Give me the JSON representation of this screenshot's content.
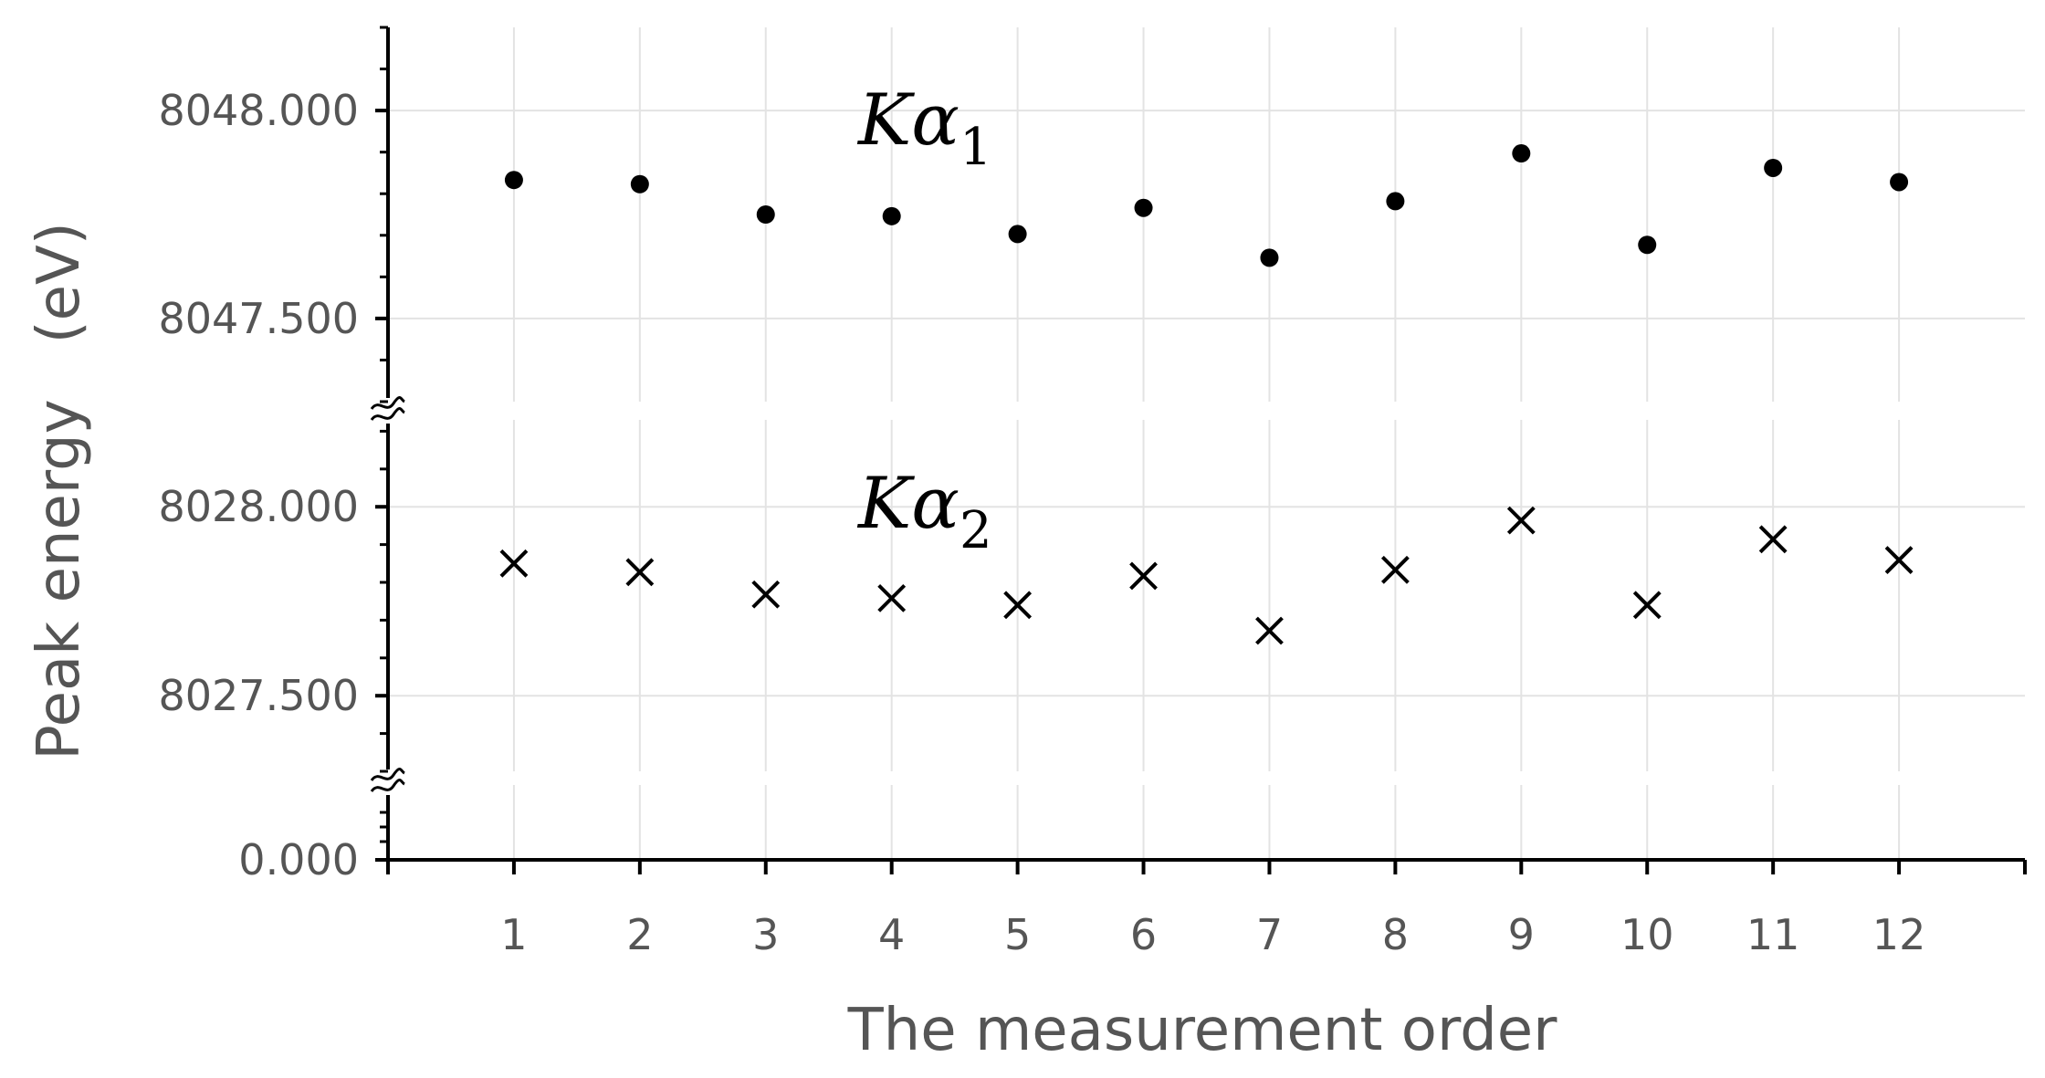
{
  "chart_data": {
    "type": "scatter",
    "xlabel": "The measurement order",
    "ylabel": "Peak energy   (eV)",
    "xlim": [
      0,
      13
    ],
    "x_ticks": [
      "1",
      "2",
      "3",
      "4",
      "5",
      "6",
      "7",
      "8",
      "9",
      "10",
      "11",
      "12"
    ],
    "y_axis_breaks": 2,
    "grid": true,
    "panels": [
      {
        "ylim": [
          8047.3,
          8048.2
        ],
        "y_ticks": [
          "8047.500",
          "8048.000"
        ],
        "y_tick_values": [
          8047.5,
          8048.0
        ],
        "series": [
          {
            "label_main": "Kα",
            "label_sub": "1",
            "marker": "dot",
            "x": [
              1,
              2,
              3,
              4,
              5,
              6,
              7,
              8,
              9,
              10,
              11,
              12
            ],
            "y": [
              8047.833,
              8047.823,
              8047.75,
              8047.746,
              8047.703,
              8047.766,
              8047.646,
              8047.782,
              8047.897,
              8047.677,
              8047.862,
              8047.828
            ]
          }
        ]
      },
      {
        "ylim": [
          8027.3,
          8028.23
        ],
        "y_ticks": [
          "8027.500",
          "8028.000"
        ],
        "y_tick_values": [
          8027.5,
          8028.0
        ],
        "series": [
          {
            "label_main": "Kα",
            "label_sub": "2",
            "marker": "x",
            "x": [
              1,
              2,
              3,
              4,
              5,
              6,
              7,
              8,
              9,
              10,
              11,
              12
            ],
            "y": [
              8027.85,
              8027.827,
              8027.768,
              8027.758,
              8027.74,
              8027.817,
              8027.672,
              8027.833,
              8027.964,
              8027.74,
              8027.914,
              8027.859
            ]
          }
        ]
      },
      {
        "y_ticks": [
          "0.000"
        ],
        "y_tick_values": [
          0
        ]
      }
    ]
  }
}
